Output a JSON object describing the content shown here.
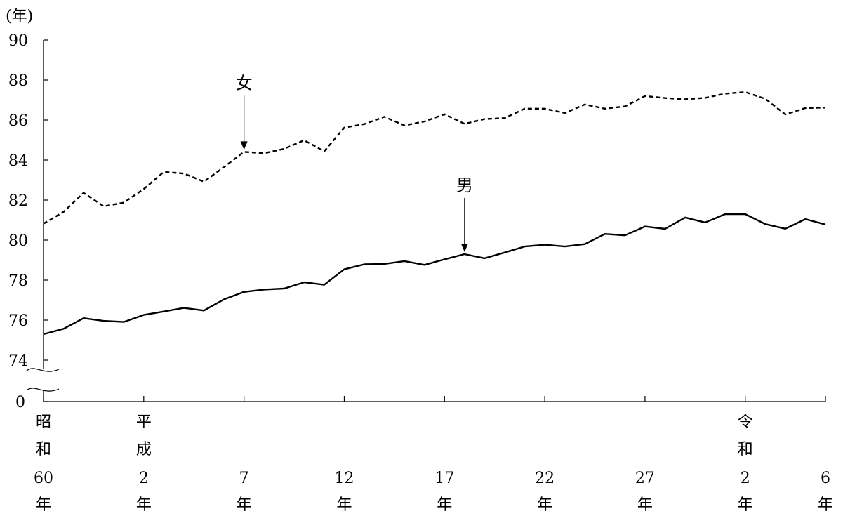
{
  "chart_data": {
    "type": "line",
    "unit_label": "(年)",
    "y_ticks": [
      "90",
      "88",
      "86",
      "84",
      "82",
      "80",
      "78",
      "76",
      "74",
      "0"
    ],
    "ylim": [
      74,
      90
    ],
    "axis_break": true,
    "x_labels": [
      {
        "idx": 0,
        "lines": [
          "昭",
          "和",
          "60",
          "年"
        ]
      },
      {
        "idx": 5,
        "lines": [
          "平",
          "成",
          "2",
          "年"
        ]
      },
      {
        "idx": 10,
        "lines": [
          "7",
          "年"
        ]
      },
      {
        "idx": 15,
        "lines": [
          "12",
          "年"
        ]
      },
      {
        "idx": 20,
        "lines": [
          "17",
          "年"
        ]
      },
      {
        "idx": 25,
        "lines": [
          "22",
          "年"
        ]
      },
      {
        "idx": 30,
        "lines": [
          "27",
          "年"
        ]
      },
      {
        "idx": 35,
        "lines": [
          "令",
          "和",
          "2",
          "年"
        ]
      },
      {
        "idx": 39,
        "lines": [
          "6",
          "年"
        ]
      }
    ],
    "x_count": 40,
    "series": [
      {
        "name": "女",
        "style": "dashed",
        "values": [
          80.82,
          81.41,
          82.36,
          81.69,
          81.87,
          82.55,
          83.41,
          83.33,
          82.92,
          83.65,
          84.41,
          84.34,
          84.56,
          84.99,
          84.44,
          85.62,
          85.8,
          86.16,
          85.73,
          85.93,
          86.29,
          85.81,
          86.05,
          86.1,
          86.57,
          86.57,
          86.35,
          86.78,
          86.57,
          86.68,
          87.2,
          87.1,
          87.04,
          87.11,
          87.32,
          87.4,
          87.06,
          86.28,
          86.6,
          86.62
        ]
      },
      {
        "name": "男",
        "style": "solid",
        "values": [
          75.3,
          75.57,
          76.1,
          75.96,
          75.91,
          76.26,
          76.43,
          76.61,
          76.48,
          77.04,
          77.41,
          77.53,
          77.58,
          77.89,
          77.77,
          78.54,
          78.79,
          78.81,
          78.95,
          78.76,
          79.04,
          79.3,
          79.09,
          79.38,
          79.68,
          79.77,
          79.68,
          79.8,
          80.31,
          80.24,
          80.68,
          80.56,
          81.13,
          80.88,
          81.3,
          81.3,
          80.8,
          80.57,
          81.05,
          80.78
        ]
      }
    ],
    "annotations": [
      {
        "series": "女",
        "label": "女",
        "idx": 10
      },
      {
        "series": "男",
        "label": "男",
        "idx": 21
      }
    ]
  }
}
